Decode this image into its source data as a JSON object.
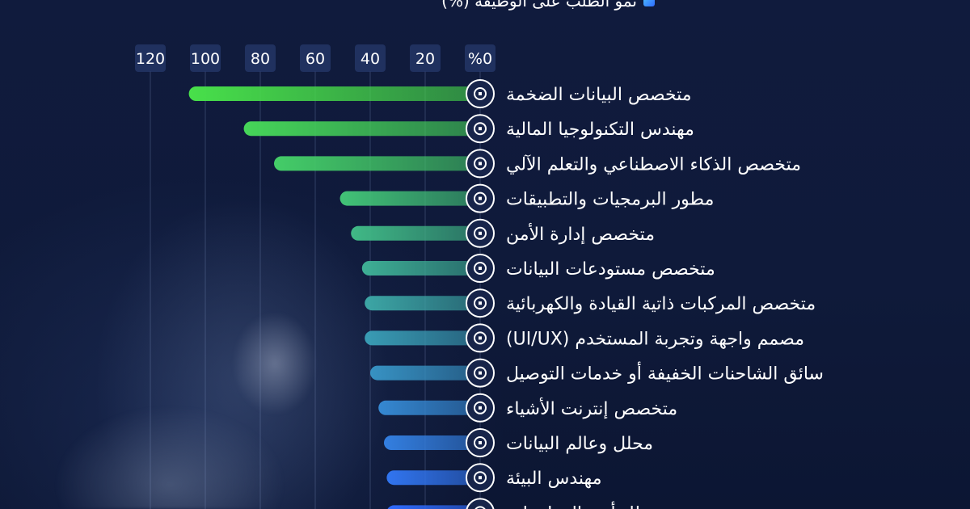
{
  "legend": {
    "label": "نمو الطلب على الوظيفة (%)"
  },
  "chart_data": {
    "type": "bar",
    "orientation": "horizontal",
    "title": "",
    "xlabel": "",
    "ylabel": "",
    "xlim": [
      0,
      120
    ],
    "x_ticks": [
      "%0",
      "20",
      "40",
      "60",
      "80",
      "100",
      "120"
    ],
    "axis_direction": "right-to-left",
    "grid": true,
    "series": [
      {
        "name": "نمو الطلب على الوظيفة (%)",
        "values": [
          106,
          86,
          75,
          51,
          47,
          43,
          42,
          42,
          40,
          37,
          35,
          34,
          34
        ]
      }
    ],
    "categories": [
      "متخصص البيانات الضخمة",
      "مهندس التكنولوجيا المالية",
      "متخصص الذكاء الاصطناعي والتعلم الآلي",
      "مطور البرمجيات والتطبيقات",
      "متخصص إدارة الأمن",
      "متخصص مستودعات البيانات",
      "متخصص المركبات ذاتية القيادة والكهربائية",
      "مصمم واجهة وتجربة المستخدم (UI/UX)",
      "سائق الشاحنات الخفيفة أو خدمات التوصيل",
      "متخصص إنترنت الأشياء",
      "محلل وعالم البيانات",
      "مهندس البيئة",
      "محلل أمن المعلومات"
    ],
    "icons": [
      "data-analytics-icon",
      "database-gear-icon",
      "ai-head-icon",
      "app-gear-icon",
      "security-target-icon",
      "cloud-storage-icon",
      "car-icon",
      "laptop-icon",
      "truck-icon",
      "iot-gear-icon",
      "bar-chart-icon",
      "globe-icon",
      "document-icon"
    ],
    "colors": [
      "#48e04a",
      "#2f6bff"
    ]
  }
}
